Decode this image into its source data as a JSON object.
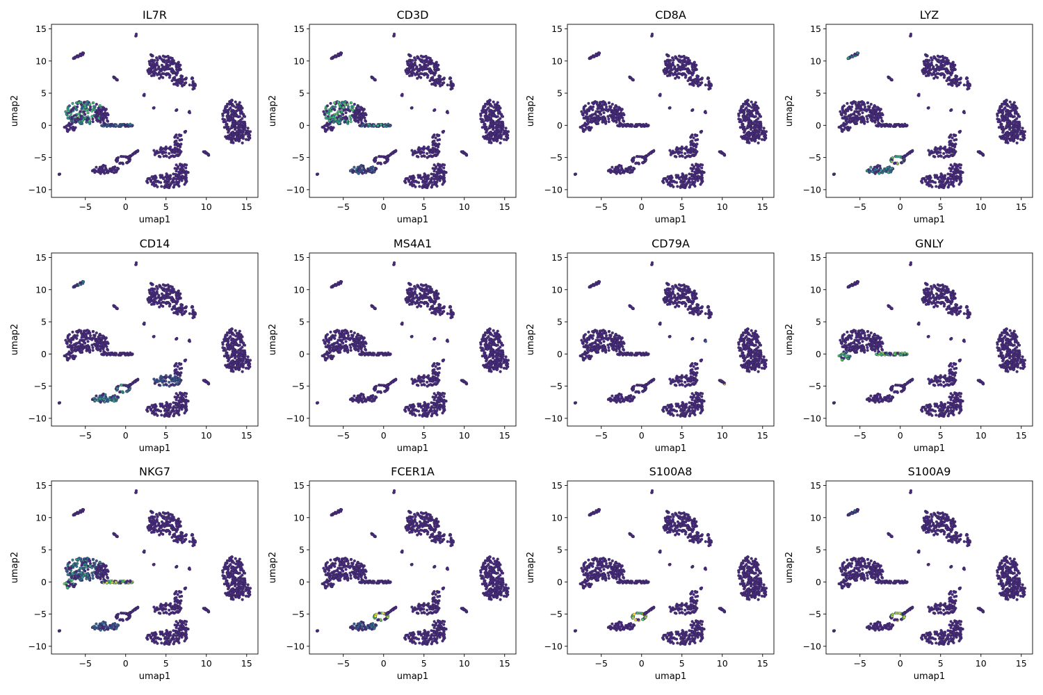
{
  "chart_data": {
    "type": "scatter",
    "layout": {
      "rows": 3,
      "cols": 4
    },
    "xlabel": "umap1",
    "ylabel": "umap2",
    "xlim": [
      -9.2,
      16.4
    ],
    "ylim": [
      -11.2,
      15.7
    ],
    "xticks": [
      -5,
      0,
      5,
      10,
      15
    ],
    "yticks": [
      -10,
      -5,
      0,
      5,
      10,
      15
    ],
    "colors": {
      "background_cells": "#472d7b",
      "cell_edge": "#2a1a47",
      "mid_expression": "#3fae9a",
      "high_expression": "#5ec962",
      "max_expression": "#fde725"
    },
    "panels": [
      {
        "title": "IL7R",
        "highlights": [
          {
            "region": "t-cell",
            "level": 0.55
          },
          {
            "region": "t-tail",
            "level": 0.35
          }
        ]
      },
      {
        "title": "CD3D",
        "highlights": [
          {
            "region": "t-cell",
            "level": 0.65
          },
          {
            "region": "t-tail",
            "level": 0.5
          },
          {
            "region": "mono-lower",
            "level": 0.35
          }
        ]
      },
      {
        "title": "CD8A",
        "highlights": [
          {
            "region": "t-cell-left",
            "level": 0.55
          }
        ]
      },
      {
        "title": "LYZ",
        "highlights": [
          {
            "region": "mono-top",
            "level": 0.55
          },
          {
            "region": "mono-lower",
            "level": 0.45
          },
          {
            "region": "mono-loop",
            "level": 0.75
          }
        ]
      },
      {
        "title": "CD14",
        "highlights": [
          {
            "region": "mono-top",
            "level": 0.5
          },
          {
            "region": "mono-lower",
            "level": 0.45
          },
          {
            "region": "mono-loop",
            "level": 0.5
          },
          {
            "region": "center-right",
            "level": 0.3
          }
        ]
      },
      {
        "title": "MS4A1",
        "highlights": [
          {
            "region": "b-speck",
            "level": 0.95
          }
        ]
      },
      {
        "title": "CD79A",
        "highlights": [
          {
            "region": "b-speck",
            "level": 0.95
          },
          {
            "region": "b-dot",
            "level": 0.6
          }
        ]
      },
      {
        "title": "GNLY",
        "highlights": [
          {
            "region": "nk-left",
            "level": 0.6
          },
          {
            "region": "t-tail",
            "level": 0.75
          }
        ]
      },
      {
        "title": "NKG7",
        "highlights": [
          {
            "region": "t-cell",
            "level": 0.45
          },
          {
            "region": "nk-left",
            "level": 0.8
          },
          {
            "region": "t-tail",
            "level": 0.85
          },
          {
            "region": "mono-lower",
            "level": 0.35
          }
        ]
      },
      {
        "title": "FCER1A",
        "highlights": [
          {
            "region": "mono-lower",
            "level": 0.35
          },
          {
            "region": "mono-loop",
            "level": 0.9
          }
        ]
      },
      {
        "title": "S100A8",
        "highlights": [
          {
            "region": "mono-loop",
            "level": 0.95
          }
        ]
      },
      {
        "title": "S100A9",
        "highlights": [
          {
            "region": "mono-top",
            "level": 0.3
          },
          {
            "region": "mono-loop",
            "level": 0.95
          }
        ]
      }
    ],
    "clusters": [
      {
        "name": "t-cell",
        "type": "blob",
        "cx": -5.1,
        "cy": 2.0,
        "rx": 2.4,
        "ry": 1.8
      },
      {
        "name": "t-cell-b",
        "type": "blob",
        "cx": -2.9,
        "cy": 1.4,
        "rx": 0.8,
        "ry": 1.6
      },
      {
        "name": "t-tail",
        "type": "line",
        "x1": -3.0,
        "y1": 0.0,
        "x2": 1.0,
        "y2": 0.0,
        "w": 0.35
      },
      {
        "name": "nk-left",
        "type": "blob",
        "cx": -6.9,
        "cy": -0.3,
        "rx": 0.7,
        "ry": 0.8
      },
      {
        "name": "mono-top",
        "type": "line",
        "x1": -6.6,
        "y1": 10.3,
        "x2": -5.2,
        "y2": 11.2,
        "w": 0.35
      },
      {
        "name": "mono-lower",
        "type": "blob",
        "cx": -2.5,
        "cy": -6.9,
        "rx": 1.7,
        "ry": 0.75
      },
      {
        "name": "mono-loop",
        "type": "ring",
        "cx": -0.3,
        "cy": -5.4,
        "rx": 0.85,
        "ry": 0.55
      },
      {
        "name": "mono-stick",
        "type": "line",
        "x1": 0.3,
        "y1": -5.0,
        "x2": 1.6,
        "y2": -3.9,
        "w": 0.18
      },
      {
        "name": "top-dot",
        "type": "blob",
        "cx": 1.3,
        "cy": 14.1,
        "rx": 0.12,
        "ry": 0.35
      },
      {
        "name": "upper-cluster",
        "type": "blob",
        "cx": 4.7,
        "cy": 9.0,
        "rx": 2.2,
        "ry": 1.8
      },
      {
        "name": "upper-arm",
        "type": "blob",
        "cx": 6.6,
        "cy": 7.0,
        "rx": 1.0,
        "ry": 1.0
      },
      {
        "name": "upper-spur",
        "type": "blob",
        "cx": 8.3,
        "cy": 6.5,
        "rx": 0.4,
        "ry": 0.9
      },
      {
        "name": "right-cluster",
        "type": "blob",
        "cx": 13.4,
        "cy": 0.6,
        "rx": 1.5,
        "ry": 3.4
      },
      {
        "name": "right-cluster-b",
        "type": "blob",
        "cx": 14.6,
        "cy": -1.4,
        "rx": 0.9,
        "ry": 1.4
      },
      {
        "name": "center-right",
        "type": "blob",
        "cx": 5.2,
        "cy": -4.2,
        "rx": 1.8,
        "ry": 0.9
      },
      {
        "name": "center-stem",
        "type": "blob",
        "cx": 6.5,
        "cy": -2.3,
        "rx": 0.55,
        "ry": 1.2
      },
      {
        "name": "bottom-blob",
        "type": "blob",
        "cx": 5.2,
        "cy": -8.6,
        "rx": 2.6,
        "ry": 1.1
      },
      {
        "name": "bottom-right",
        "type": "blob",
        "cx": 6.9,
        "cy": -7.0,
        "rx": 0.9,
        "ry": 1.2
      },
      {
        "name": "b-speck",
        "type": "line",
        "x1": 9.8,
        "y1": -4.1,
        "x2": 10.3,
        "y2": -4.6,
        "w": 0.15
      },
      {
        "name": "b-dot",
        "type": "blob",
        "cx": 7.8,
        "cy": 2.0,
        "rx": 0.15,
        "ry": 0.25
      },
      {
        "name": "speck-1",
        "type": "line",
        "x1": -1.5,
        "y1": 7.5,
        "x2": -1.0,
        "y2": 7.0,
        "w": 0.12
      },
      {
        "name": "speck-2",
        "type": "line",
        "x1": 3.1,
        "y1": 11.0,
        "x2": 3.4,
        "y2": 10.7,
        "w": 0.12
      },
      {
        "name": "speck-3",
        "type": "blob",
        "cx": 2.3,
        "cy": 4.7,
        "rx": 0.08,
        "ry": 0.15
      },
      {
        "name": "speck-4",
        "type": "blob",
        "cx": 3.5,
        "cy": 2.6,
        "rx": 0.08,
        "ry": 0.15
      },
      {
        "name": "speck-5",
        "type": "blob",
        "cx": 6.3,
        "cy": 2.3,
        "rx": 0.08,
        "ry": 0.15
      },
      {
        "name": "speck-6",
        "type": "blob",
        "cx": 7.4,
        "cy": -1.0,
        "rx": 0.08,
        "ry": 0.15
      },
      {
        "name": "speck-7",
        "type": "line",
        "x1": 9.6,
        "y1": -4.1,
        "x2": 10.3,
        "y2": -4.5,
        "w": 0.1
      },
      {
        "name": "speck-8",
        "type": "blob",
        "cx": -8.2,
        "cy": -7.6,
        "rx": 0.06,
        "ry": 0.1
      }
    ]
  }
}
